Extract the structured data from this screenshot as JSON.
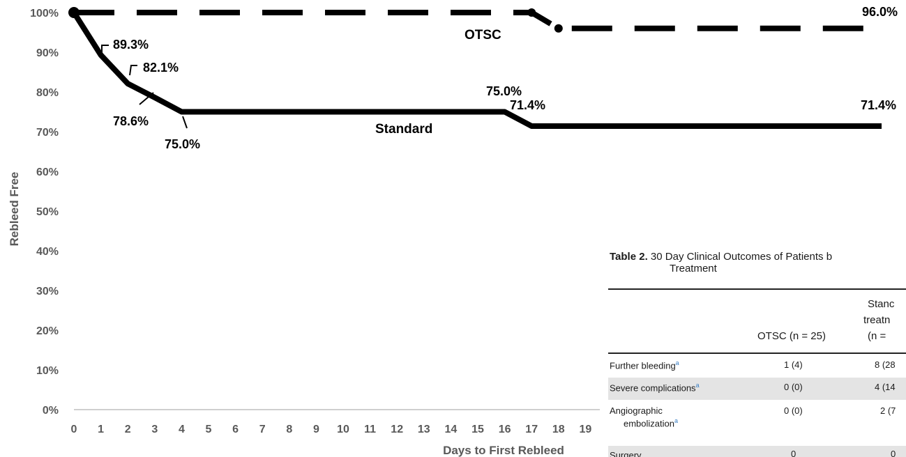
{
  "chart_data": {
    "type": "line",
    "xlabel": "Days to First Rebleed",
    "ylabel": "Rebleed Free",
    "xlim": [
      0,
      19
    ],
    "ylim": [
      0,
      100
    ],
    "x_ticks": [
      "0",
      "1",
      "2",
      "3",
      "4",
      "5",
      "6",
      "7",
      "8",
      "9",
      "10",
      "11",
      "12",
      "13",
      "14",
      "15",
      "16",
      "17",
      "18",
      "19"
    ],
    "y_ticks": [
      "0%",
      "10%",
      "20%",
      "30%",
      "40%",
      "50%",
      "60%",
      "70%",
      "80%",
      "90%",
      "100%"
    ],
    "series": [
      {
        "name": "OTSC",
        "style": "dashed",
        "points": [
          [
            0,
            100
          ],
          [
            17,
            100
          ],
          [
            18,
            96
          ],
          [
            30,
            96
          ]
        ],
        "markers": [
          [
            17,
            100
          ],
          [
            18,
            96
          ]
        ]
      },
      {
        "name": "Standard",
        "style": "solid",
        "points": [
          [
            0,
            100
          ],
          [
            1,
            89.3
          ],
          [
            2,
            82.1
          ],
          [
            3,
            78.6
          ],
          [
            4,
            75
          ],
          [
            16,
            75
          ],
          [
            17,
            71.4
          ],
          [
            30,
            71.4
          ]
        ],
        "markers": [
          [
            0,
            100
          ]
        ]
      }
    ],
    "annotations": [
      "89.3%",
      "82.1%",
      "78.6%",
      "75.0%",
      "75.0%",
      "71.4%",
      "71.4%",
      "96.0%"
    ],
    "grid": false
  },
  "table": {
    "caption_bold": "Table 2.",
    "caption_text": "30 Day Clinical Outcomes of Patients b",
    "caption_line2": "Treatment",
    "col_otsc": "OTSC (n = 25)",
    "col_std_1": "Stanc",
    "col_std_2": "treatn",
    "col_std_3": "(n =",
    "rows": [
      {
        "label": "Further bleeding",
        "otsc": "1 (4)",
        "std": "8 (28"
      },
      {
        "label": "Severe complications",
        "otsc": "0 (0)",
        "std": "4 (14"
      },
      {
        "label": "Angiographic",
        "label2": "embolization",
        "otsc": "0 (0)",
        "std": "2 (7"
      },
      {
        "label": "Surgery",
        "otsc": "0",
        "std": "0"
      }
    ]
  }
}
